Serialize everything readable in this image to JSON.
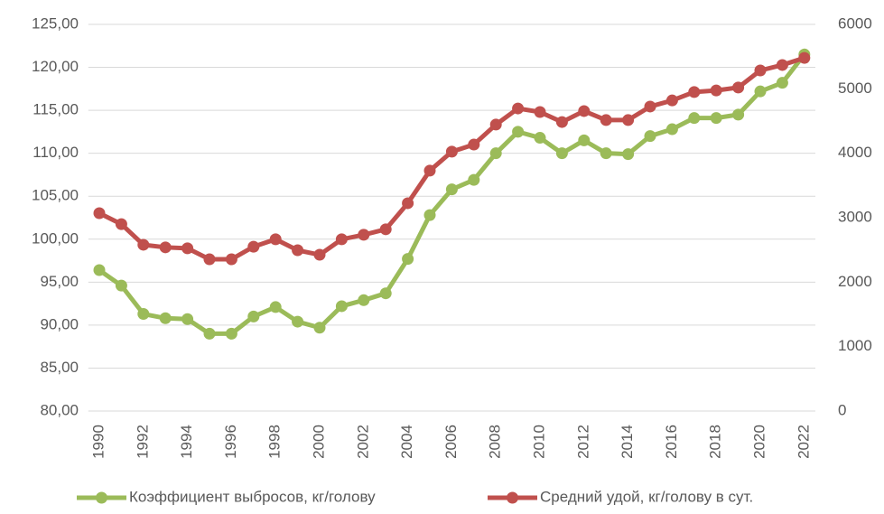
{
  "chart_data": {
    "type": "line",
    "categories": [
      "1990",
      null,
      "1992",
      null,
      "1994",
      null,
      "1996",
      null,
      "1998",
      null,
      "2000",
      null,
      "2002",
      null,
      "2004",
      null,
      "2006",
      null,
      "2008",
      null,
      "2010",
      null,
      "2012",
      null,
      "2014",
      null,
      "2016",
      null,
      "2018",
      null,
      "2020",
      null,
      "2022"
    ],
    "series": [
      {
        "name": "Коэффициент выбросов, кг/голову",
        "color": "#9bbb59",
        "values": [
          96.4,
          94.6,
          91.3,
          90.8,
          90.7,
          89.0,
          89.0,
          91.0,
          92.1,
          90.4,
          89.7,
          92.2,
          92.9,
          93.7,
          97.7,
          102.8,
          105.8,
          106.9,
          110.0,
          112.5,
          111.8,
          110.0,
          111.5,
          110.0,
          109.9,
          112.0,
          112.8,
          114.1,
          114.1,
          114.5,
          117.2,
          118.2,
          121.5
        ]
      },
      {
        "name": "Средний удой, кг/голову в сут.",
        "color": "#c0504d",
        "axis": "y2",
        "values": [
          3070,
          2900,
          2580,
          2540,
          2525,
          2355,
          2355,
          2550,
          2665,
          2495,
          2425,
          2665,
          2735,
          2820,
          3225,
          3730,
          4025,
          4135,
          4445,
          4695,
          4640,
          4485,
          4655,
          4515,
          4515,
          4725,
          4820,
          4950,
          4975,
          5020,
          5285,
          5370,
          5480
        ]
      }
    ],
    "ylim": [
      80,
      125
    ],
    "yticks": [
      {
        "value": 80,
        "label": "80,00"
      },
      {
        "value": 85,
        "label": "85,00"
      },
      {
        "value": 90,
        "label": "90,00"
      },
      {
        "value": 95,
        "label": "95,00"
      },
      {
        "value": 100,
        "label": "100,00"
      },
      {
        "value": 105,
        "label": "105,00"
      },
      {
        "value": 110,
        "label": "110,00"
      },
      {
        "value": 115,
        "label": "115,00"
      },
      {
        "value": 120,
        "label": "120,00"
      },
      {
        "value": 125,
        "label": "125,00"
      }
    ],
    "y2lim": [
      0,
      6000
    ],
    "y2ticks": [
      0,
      1000,
      2000,
      3000,
      4000,
      5000,
      6000
    ],
    "grid": true,
    "legend": "bottom"
  }
}
